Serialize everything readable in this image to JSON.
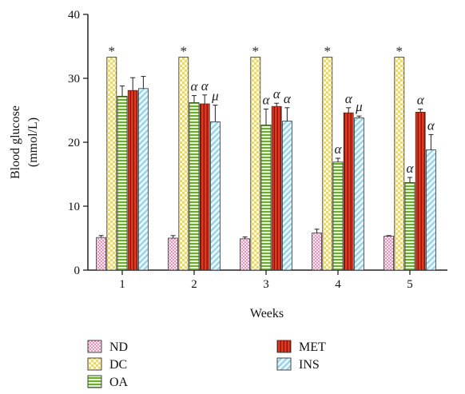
{
  "chart_data": {
    "type": "bar",
    "xlabel": "Weeks",
    "ylabel": "Blood glucose",
    "ylabel_unit": "(mmol/L)",
    "ylim": [
      0,
      40
    ],
    "yticks": [
      "0",
      "10",
      "20",
      "30",
      "40"
    ],
    "categories": [
      "1",
      "2",
      "3",
      "4",
      "5"
    ],
    "legend_position": "bottom",
    "series": [
      {
        "name": "ND",
        "color": "#e07aa8",
        "pattern": "dots",
        "values": [
          5.1,
          5.0,
          4.9,
          5.8,
          5.3
        ],
        "errors": [
          0.3,
          0.4,
          0.3,
          0.6,
          0.1
        ]
      },
      {
        "name": "DC",
        "color": "#f0d860",
        "pattern": "checker",
        "values": [
          33.3,
          33.3,
          33.3,
          33.3,
          33.3
        ],
        "errors": [
          0,
          0,
          0,
          0,
          0
        ]
      },
      {
        "name": "OA",
        "color": "#7cbb3c",
        "pattern": "horizontal",
        "values": [
          27.2,
          26.2,
          22.7,
          16.9,
          13.7
        ],
        "errors": [
          1.6,
          1.1,
          2.5,
          0.6,
          0.8
        ]
      },
      {
        "name": "MET",
        "color": "#d8321e",
        "pattern": "vertical",
        "values": [
          28.1,
          26.0,
          25.6,
          24.6,
          24.7
        ],
        "errors": [
          2.0,
          1.4,
          0.5,
          0.8,
          0.5
        ]
      },
      {
        "name": "INS",
        "color": "#a8dcea",
        "pattern": "diagonal",
        "values": [
          28.4,
          23.2,
          23.3,
          23.8,
          18.8
        ],
        "errors": [
          1.9,
          2.6,
          2.1,
          0.3,
          2.4
        ]
      }
    ],
    "annotations": [
      {
        "category": "1",
        "series": "DC",
        "text": "*"
      },
      {
        "category": "2",
        "series": "DC",
        "text": "*"
      },
      {
        "category": "3",
        "series": "DC",
        "text": "*"
      },
      {
        "category": "4",
        "series": "DC",
        "text": "*"
      },
      {
        "category": "5",
        "series": "DC",
        "text": "*"
      },
      {
        "category": "2",
        "series": "OA",
        "text": "α"
      },
      {
        "category": "2",
        "series": "MET",
        "text": "α"
      },
      {
        "category": "2",
        "series": "INS",
        "text": "μ"
      },
      {
        "category": "3",
        "series": "OA",
        "text": "α"
      },
      {
        "category": "3",
        "series": "MET",
        "text": "α"
      },
      {
        "category": "3",
        "series": "INS",
        "text": "α"
      },
      {
        "category": "4",
        "series": "OA",
        "text": "α"
      },
      {
        "category": "4",
        "series": "MET",
        "text": "α"
      },
      {
        "category": "4",
        "series": "INS",
        "text": "μ"
      },
      {
        "category": "5",
        "series": "OA",
        "text": "α"
      },
      {
        "category": "5",
        "series": "MET",
        "text": "α"
      },
      {
        "category": "5",
        "series": "INS",
        "text": "α"
      }
    ]
  }
}
